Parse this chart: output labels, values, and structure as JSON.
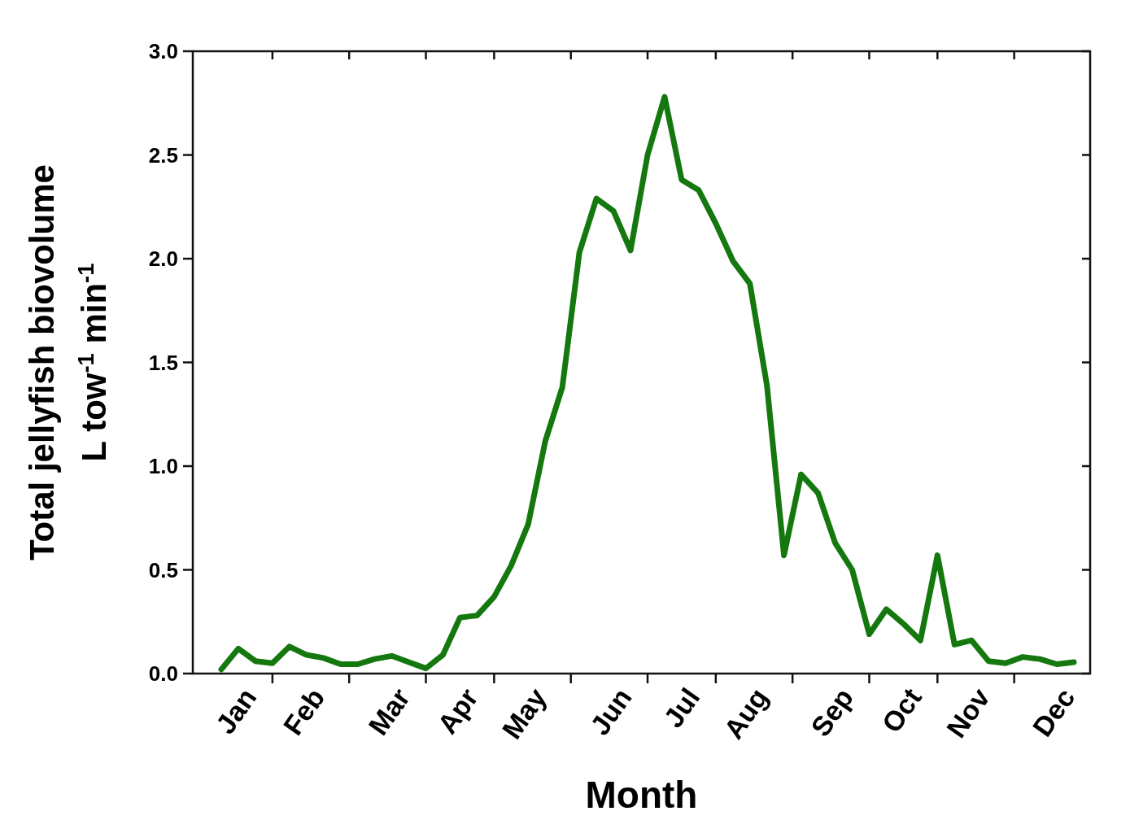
{
  "chart_data": {
    "type": "line",
    "xlabel": "Month",
    "ylabel": "Total jellyfish biovolume\nL tow$^{-1}$ min$^{-1}$",
    "categories": [
      null,
      "Jan",
      null,
      null,
      null,
      "Feb",
      null,
      null,
      null,
      null,
      "Mar",
      null,
      null,
      null,
      "Apr",
      null,
      null,
      null,
      "May",
      null,
      null,
      null,
      null,
      "Jun",
      null,
      null,
      null,
      "Jul",
      null,
      null,
      null,
      "Aug",
      null,
      null,
      null,
      null,
      "Sep",
      null,
      null,
      null,
      "Oct",
      null,
      null,
      null,
      "Nov",
      null,
      null,
      null,
      null,
      "Dec",
      null
    ],
    "series": [
      {
        "color": "#14780f",
        "values": [
          0.02,
          0.12,
          0.06,
          0.05,
          0.13,
          0.09,
          0.075,
          0.045,
          0.045,
          0.07,
          0.085,
          0.055,
          0.025,
          0.09,
          0.27,
          0.28,
          0.37,
          0.52,
          0.72,
          1.12,
          1.38,
          2.03,
          2.29,
          2.23,
          2.04,
          2.5,
          2.78,
          2.38,
          2.33,
          2.17,
          1.99,
          1.88,
          1.39,
          0.57,
          0.96,
          0.87,
          0.63,
          0.5,
          0.19,
          0.31,
          0.24,
          0.16,
          0.57,
          0.14,
          0.16,
          0.06,
          0.05,
          0.08,
          0.07,
          0.045,
          0.055
        ]
      }
    ],
    "ylim": [
      0,
      3
    ],
    "yticks": [
      {
        "value": 0,
        "label": "0.0"
      },
      {
        "value": 0.5,
        "label": "0.5"
      },
      {
        "value": 1,
        "label": "1.0"
      },
      {
        "value": 1.5,
        "label": "1.5"
      },
      {
        "value": 2,
        "label": "2.0"
      },
      {
        "value": 2.5,
        "label": "2.5"
      },
      {
        "value": 3,
        "label": "3.0"
      }
    ],
    "marker": "none",
    "line_style": "solid"
  }
}
